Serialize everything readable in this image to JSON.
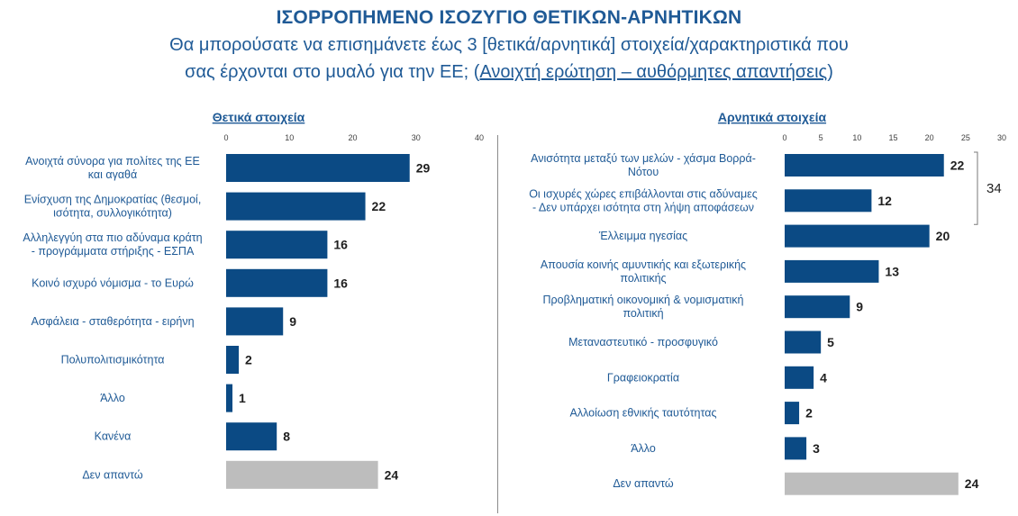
{
  "header": {
    "title": "ΙΣΟΡΡΟΠΗΜΕΝΟ ΙΣΟΖΥΓΙΟ ΘΕΤΙΚΩΝ-ΑΡΝΗΤΙΚΩΝ",
    "subtitle_line1": "Θα μπορούσατε να επισημάνετε έως 3 [θετικά/αρνητικά] στοιχεία/χαρακτηριστικά που",
    "subtitle_line2_start": "σας έρχονται στο μυαλό για την ΕΕ; (",
    "subtitle_line2_underlined": "Ανοιχτή ερώτηση – αυθόρμητες απαντήσεις",
    "subtitle_line2_end": ")"
  },
  "colors": {
    "bar": "#0b4a84",
    "no_answer_bar": "#bdbdbd",
    "header_text": "#1f5a96"
  },
  "chart_data": [
    {
      "type": "bar",
      "orientation": "horizontal",
      "title": "Θετικά στοιχεία",
      "xlim": [
        0,
        40
      ],
      "ticks": [
        0,
        10,
        20,
        30,
        40
      ],
      "grid": false,
      "categories": [
        [
          "Ανοιχτά σύνορα για πολίτες της ΕΕ",
          "και αγαθά"
        ],
        [
          "Ενίσχυση της Δημοκρατίας (θεσμοί,",
          "ισότητα, συλλογικότητα)"
        ],
        [
          "Αλληλεγγύη στα πιο αδύναμα κράτη",
          "- προγράμματα στήριξης - ΕΣΠΑ"
        ],
        [
          "Κοινό ισχυρό νόμισμα - το Ευρώ"
        ],
        [
          "Ασφάλεια - σταθερότητα - ειρήνη"
        ],
        [
          "Πολυπολιτισμικότητα"
        ],
        [
          "Άλλο"
        ],
        [
          "Κανένα"
        ],
        [
          "Δεν απαντώ"
        ]
      ],
      "values": [
        29,
        22,
        16,
        16,
        9,
        2,
        1,
        8,
        24
      ],
      "highlight_last": true
    },
    {
      "type": "bar",
      "orientation": "horizontal",
      "title": "Αρνητικά στοιχεία",
      "xlim": [
        0,
        30
      ],
      "ticks": [
        0,
        5,
        10,
        15,
        20,
        25,
        30
      ],
      "grid": false,
      "categories": [
        [
          "Ανισότητα μεταξύ των μελών - χάσμα Βορρά-",
          "Νότου"
        ],
        [
          "Οι ισχυρές χώρες επιβάλλονται στις αδύναμες",
          "- Δεν υπάρχει ισότητα στη λήψη αποφάσεων"
        ],
        [
          "Έλλειμμα ηγεσίας"
        ],
        [
          "Απουσία κοινής αμυντικής και εξωτερικής",
          "πολιτικής"
        ],
        [
          "Προβληματική οικονομική & νομισματική",
          "πολιτική"
        ],
        [
          "Μεταναστευτικό - προσφυγικό"
        ],
        [
          "Γραφειοκρατία"
        ],
        [
          "Αλλοίωση εθνικής ταυτότητας"
        ],
        [
          "Άλλο"
        ],
        [
          "Δεν απαντώ"
        ]
      ],
      "values": [
        22,
        12,
        20,
        13,
        9,
        5,
        4,
        2,
        3,
        24
      ],
      "highlight_last": true,
      "bracket_total": 34
    }
  ]
}
